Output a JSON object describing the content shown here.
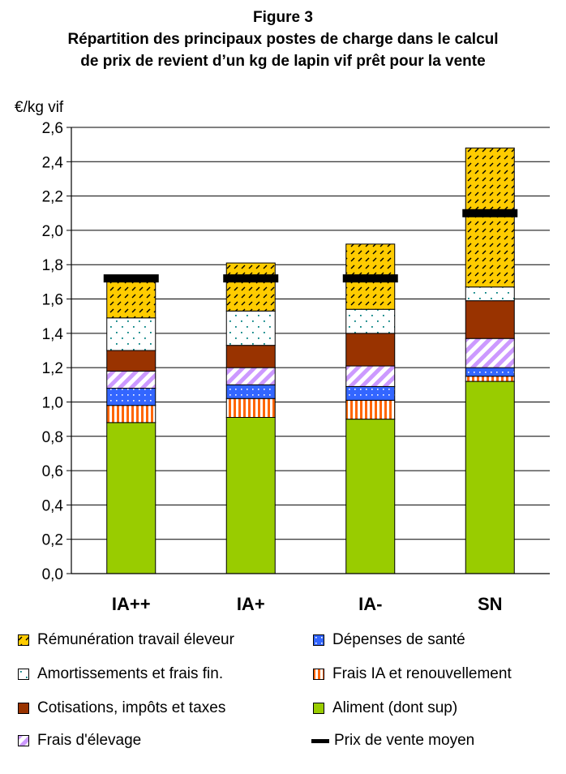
{
  "figure_label": "Figure 3",
  "title_line1": "Répartition des principaux postes de charge dans le calcul",
  "title_line2": "de prix de revient d’un kg de lapin vif prêt pour la vente",
  "chart_data": {
    "type": "bar",
    "stacked": true,
    "ylabel": "€/kg vif",
    "ylim": [
      0,
      2.6
    ],
    "yticks": [
      "0,0",
      "0,2",
      "0,4",
      "0,6",
      "0,8",
      "1,0",
      "1,2",
      "1,4",
      "1,6",
      "1,8",
      "2,0",
      "2,2",
      "2,4",
      "2,6"
    ],
    "grid": true,
    "categories": [
      "IA++",
      "IA+",
      "IA-",
      "SN"
    ],
    "series": [
      {
        "name": "Aliment (dont sup)",
        "color": "#99cc00",
        "pattern": "solid",
        "values": [
          0.88,
          0.91,
          0.9,
          1.12
        ]
      },
      {
        "name": "Frais IA et renouvellement",
        "color": "#ff6600",
        "pattern": "vertical-stripes",
        "values": [
          0.1,
          0.11,
          0.11,
          0.03
        ]
      },
      {
        "name": "Dépenses de santé",
        "color": "#3366ff",
        "pattern": "dots",
        "values": [
          0.1,
          0.08,
          0.08,
          0.05
        ]
      },
      {
        "name": "Frais d'élevage",
        "color": "#cc99ff",
        "pattern": "diagonal-stripes",
        "values": [
          0.1,
          0.1,
          0.12,
          0.17
        ]
      },
      {
        "name": "Cotisations, impôts et taxes",
        "color": "#993300",
        "pattern": "solid",
        "values": [
          0.12,
          0.13,
          0.19,
          0.22
        ]
      },
      {
        "name": "Amortissements et frais fin.",
        "color": "#ffffff",
        "pattern": "sparse-dots",
        "values": [
          0.19,
          0.2,
          0.14,
          0.08
        ]
      },
      {
        "name": "Rémunération travail éleveur",
        "color": "#ffcc00",
        "pattern": "dashes",
        "values": [
          0.21,
          0.28,
          0.38,
          0.81
        ]
      }
    ],
    "price_line": {
      "name": "Prix de vente moyen",
      "color": "#000000",
      "values": [
        1.72,
        1.72,
        1.72,
        2.1
      ]
    }
  },
  "legend": {
    "items": [
      {
        "label": "Rémunération travail éleveur",
        "swatch": "s-remu"
      },
      {
        "label": "Dépenses de santé",
        "swatch": "s-sante"
      },
      {
        "label": "Amortissements et frais fin.",
        "swatch": "s-amort"
      },
      {
        "label": "Frais IA et renouvellement",
        "swatch": "s-ia"
      },
      {
        "label": "Cotisations, impôts et taxes",
        "swatch": "s-cotis"
      },
      {
        "label": "Aliment (dont sup)",
        "swatch": "s-aliment"
      },
      {
        "label": "Frais d'élevage",
        "swatch": "s-elevage"
      },
      {
        "label": "Prix de vente moyen",
        "swatch": "line"
      }
    ]
  }
}
